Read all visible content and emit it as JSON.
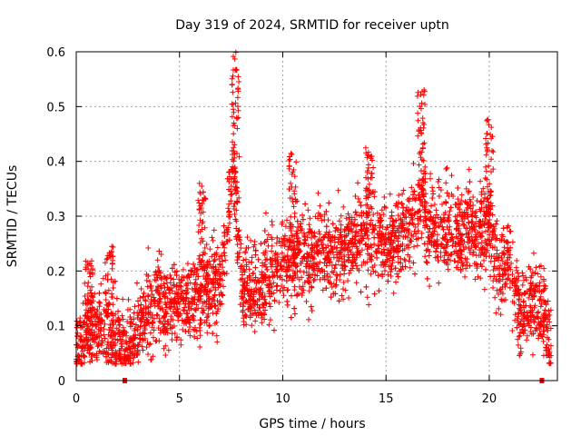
{
  "chart_data": {
    "type": "scatter",
    "title": "Day 319 of 2024, SRMTID for receiver uptn",
    "xlabel": "GPS time / hours",
    "ylabel": "SRMTID / TECUs",
    "xlim": [
      0,
      23.3
    ],
    "ylim": [
      0,
      0.6
    ],
    "xticks": [
      0,
      5,
      10,
      15,
      20
    ],
    "xtick_labels": [
      "0",
      "5",
      "10",
      "15",
      "20"
    ],
    "yticks": [
      0,
      0.1,
      0.2,
      0.3,
      0.4,
      0.5,
      0.6
    ],
    "ytick_labels": [
      "0",
      "0.1",
      "0.2",
      "0.3",
      "0.4",
      "0.5",
      "0.6"
    ],
    "grid": true,
    "marker": "+",
    "color": "#ff0000",
    "series": [
      {
        "name": "SRMTID",
        "trend_x": [
          0.0,
          0.5,
          1.0,
          1.5,
          2.0,
          2.5,
          3.0,
          3.5,
          4.0,
          4.5,
          5.0,
          5.5,
          6.0,
          6.5,
          7.0,
          7.3,
          7.6,
          7.8,
          8.0,
          8.5,
          9.0,
          9.5,
          10.0,
          10.5,
          11.0,
          11.5,
          12.0,
          12.5,
          13.0,
          13.5,
          14.0,
          14.5,
          15.0,
          15.5,
          16.0,
          16.5,
          16.8,
          17.0,
          17.5,
          18.0,
          18.5,
          19.0,
          19.5,
          20.0,
          20.5,
          21.0,
          21.5,
          22.0,
          22.5,
          23.0
        ],
        "trend_y": [
          0.07,
          0.08,
          0.1,
          0.08,
          0.07,
          0.06,
          0.09,
          0.13,
          0.14,
          0.13,
          0.14,
          0.15,
          0.16,
          0.18,
          0.17,
          0.28,
          0.4,
          0.3,
          0.18,
          0.17,
          0.18,
          0.19,
          0.23,
          0.21,
          0.23,
          0.22,
          0.25,
          0.22,
          0.24,
          0.26,
          0.27,
          0.25,
          0.24,
          0.26,
          0.27,
          0.3,
          0.33,
          0.28,
          0.27,
          0.28,
          0.26,
          0.28,
          0.27,
          0.28,
          0.2,
          0.22,
          0.12,
          0.14,
          0.13,
          0.06
        ],
        "spread": 0.05,
        "points_per_hour": 170,
        "peaks": [
          {
            "x": 7.7,
            "y": 0.6
          },
          {
            "x": 16.7,
            "y": 0.535
          },
          {
            "x": 20.0,
            "y": 0.48
          },
          {
            "x": 10.5,
            "y": 0.415
          },
          {
            "x": 14.2,
            "y": 0.425
          },
          {
            "x": 1.6,
            "y": 0.245
          },
          {
            "x": 0.6,
            "y": 0.22
          },
          {
            "x": 6.1,
            "y": 0.36
          }
        ]
      }
    ],
    "gaps_at_zero": [
      2.35,
      22.55
    ]
  }
}
